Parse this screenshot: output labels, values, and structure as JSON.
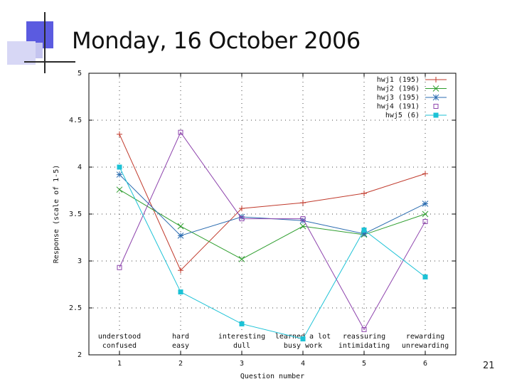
{
  "slide": {
    "title": "Monday, 16 October 2006",
    "page_number": "21"
  },
  "chart_data": {
    "type": "line",
    "x": [
      1,
      2,
      3,
      4,
      5,
      6
    ],
    "xticks": [
      "1",
      "2",
      "3",
      "4",
      "5",
      "6"
    ],
    "yticks": [
      "2",
      "2.5",
      "3",
      "3.5",
      "4",
      "4.5",
      "5"
    ],
    "ylim": [
      2,
      5
    ],
    "xlim": [
      0.5,
      6.5
    ],
    "xlabel": "Question number",
    "ylabel": "Response (scale of 1-5)",
    "grid": true,
    "legend_position": "top-right",
    "category_labels": [
      {
        "top": "understood",
        "bottom": "confused"
      },
      {
        "top": "hard",
        "bottom": "easy"
      },
      {
        "top": "interesting",
        "bottom": "dull"
      },
      {
        "top": "learned a lot",
        "bottom": "busy work"
      },
      {
        "top": "reassuring",
        "bottom": "intimidating"
      },
      {
        "top": "rewarding",
        "bottom": "unrewarding"
      }
    ],
    "series": [
      {
        "name": "hwj1 (195)",
        "color": "#c0392b",
        "marker": "plus",
        "values": [
          4.35,
          2.9,
          3.56,
          3.62,
          3.72,
          3.93
        ]
      },
      {
        "name": "hwj2 (196)",
        "color": "#2e9e2e",
        "marker": "x",
        "values": [
          3.76,
          3.37,
          3.02,
          3.37,
          3.28,
          3.5
        ]
      },
      {
        "name": "hwj3 (195)",
        "color": "#2b6cb0",
        "marker": "star",
        "values": [
          3.92,
          3.27,
          3.47,
          3.43,
          3.29,
          3.61
        ]
      },
      {
        "name": "hwj4 (191)",
        "color": "#8e44ad",
        "marker": "square",
        "values": [
          2.93,
          4.37,
          3.45,
          3.45,
          2.27,
          3.42
        ]
      },
      {
        "name": "hwj5 (6)",
        "color": "#1cc2d6",
        "marker": "filled-square",
        "values": [
          4.0,
          2.67,
          2.33,
          2.17,
          3.33,
          2.83
        ]
      }
    ]
  }
}
